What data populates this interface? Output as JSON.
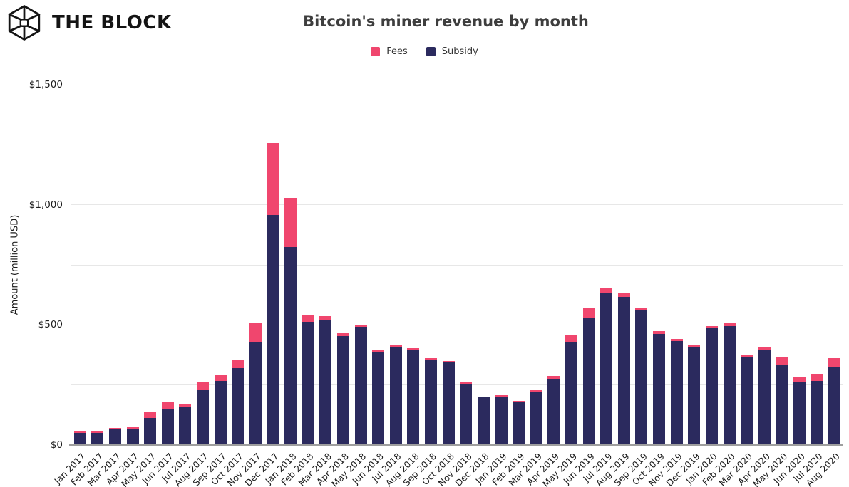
{
  "header": {
    "brand": "THE BLOCK",
    "title": "Bitcoin's miner revenue by month"
  },
  "y_axis": {
    "title": "Amount (million USD)",
    "ticks": [
      {
        "value": 0,
        "label": "$0"
      },
      {
        "value": 500,
        "label": "$500"
      },
      {
        "value": 1000,
        "label": "$1,000"
      },
      {
        "value": 1500,
        "label": "$1,500"
      }
    ]
  },
  "chart_data": {
    "type": "bar",
    "stacked": true,
    "title": "Bitcoin's miner revenue by month",
    "xlabel": "",
    "ylabel": "Amount (million USD)",
    "ylim": [
      0,
      1500
    ],
    "grid_step": 250,
    "grid": true,
    "legend_position": "top-center",
    "units": "million USD",
    "categories": [
      "Jan 2017",
      "Feb 2017",
      "Mar 2017",
      "Apr 2017",
      "May 2017",
      "Jun 2017",
      "Jul 2017",
      "Aug 2017",
      "Sep 2017",
      "Oct 2017",
      "Nov 2017",
      "Dec 2017",
      "Jan 2018",
      "Feb 2018",
      "Mar 2018",
      "Apr 2018",
      "May 2018",
      "Jun 2018",
      "Jul 2018",
      "Aug 2018",
      "Sep 2018",
      "Oct 2018",
      "Nov 2018",
      "Dec 2018",
      "Jan 2019",
      "Feb 2019",
      "Mar 2019",
      "Apr 2019",
      "May 2019",
      "Jun 2019",
      "Jul 2019",
      "Aug 2019",
      "Sep 2019",
      "Oct 2019",
      "Nov 2019",
      "Dec 2019",
      "Jan 2020",
      "Feb 2020",
      "Mar 2020",
      "Apr 2020",
      "May 2020",
      "Jun 2020",
      "Jul 2020",
      "Aug 2020"
    ],
    "series": [
      {
        "name": "Fees",
        "color": "#f0466e",
        "values": [
          8,
          8,
          8,
          10,
          25,
          26,
          16,
          33,
          25,
          36,
          81,
          299,
          203,
          27,
          15,
          12,
          9,
          9,
          8,
          9,
          7,
          6,
          6,
          5,
          6,
          5,
          6,
          12,
          32,
          36,
          20,
          15,
          10,
          10,
          10,
          8,
          10,
          12,
          10,
          10,
          34,
          17,
          29,
          36
        ]
      },
      {
        "name": "Subsidy",
        "color": "#2b2a5e",
        "values": [
          49,
          51,
          64,
          64,
          113,
          151,
          157,
          227,
          266,
          319,
          427,
          957,
          825,
          512,
          521,
          453,
          493,
          385,
          410,
          393,
          356,
          345,
          254,
          198,
          202,
          180,
          223,
          277,
          429,
          532,
          633,
          617,
          563,
          463,
          433,
          410,
          485,
          494,
          366,
          395,
          331,
          264,
          267,
          327
        ]
      }
    ]
  }
}
